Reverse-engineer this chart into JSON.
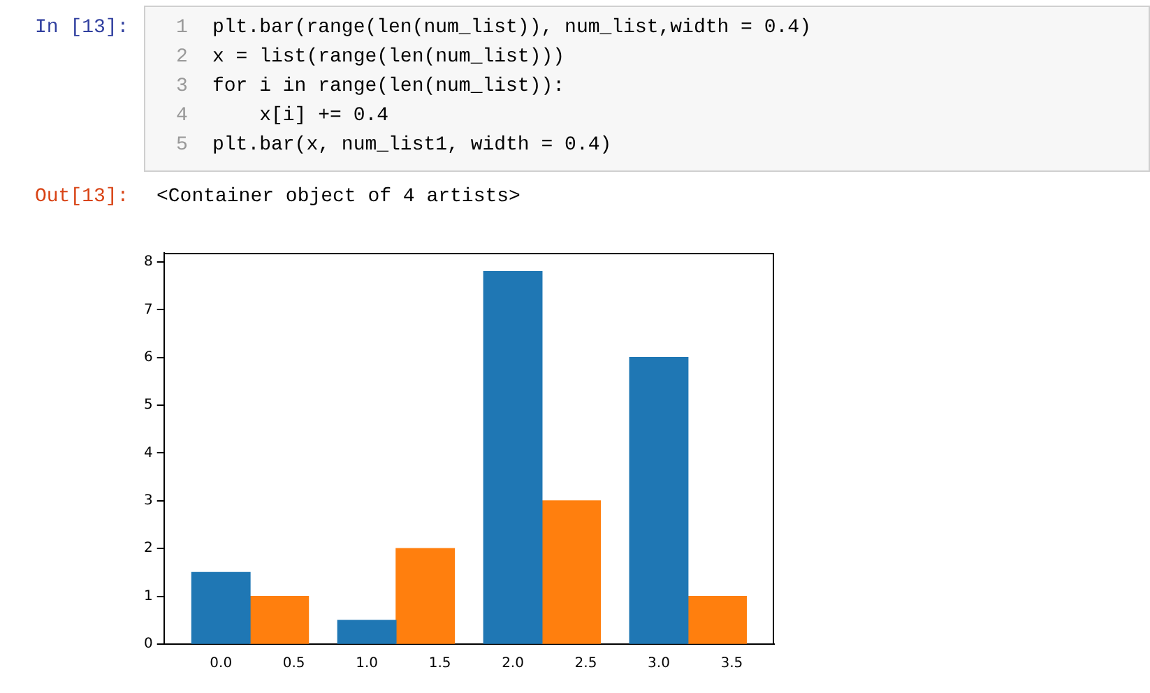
{
  "chart_data": {
    "type": "bar",
    "annotations": [
      "In [13]:",
      "1",
      "plt.bar(range(len(num_list)), num_list,width = 0.4)",
      "2",
      "x = list(range(len(num_list)))",
      "3",
      "for i in range(len(num_list)):",
      "4",
      "    x[i] += 0.4",
      "5",
      "plt.bar(x, num_list1, width = 0.4)",
      "Out[13]:",
      "<Container object of 4 artists>"
    ],
    "series": [
      {
        "color": "#1f77b4",
        "x": [
          0,
          1,
          2,
          3
        ],
        "values": [
          1.5,
          0.5,
          7.8,
          6
        ]
      },
      {
        "color": "#ff7f0e",
        "x": [
          0.4,
          1.4,
          2.4,
          3.4
        ],
        "values": [
          1,
          2,
          3,
          1
        ]
      }
    ],
    "xlim": [
      -0.39,
      3.79
    ],
    "xticks": [
      {
        "value": 0,
        "label": "0.0"
      },
      {
        "value": 0.5,
        "label": "0.5"
      },
      {
        "value": 1,
        "label": "1.0"
      },
      {
        "value": 1.5,
        "label": "1.5"
      },
      {
        "value": 2,
        "label": "2.0"
      },
      {
        "value": 2.5,
        "label": "2.5"
      },
      {
        "value": 3,
        "label": "3.0"
      },
      {
        "value": 3.5,
        "label": "3.5"
      }
    ],
    "ylim": [
      0,
      8.19
    ],
    "yticks": [
      0,
      1,
      2,
      3,
      4,
      5,
      6,
      7,
      8
    ],
    "grid": false,
    "legend": false
  }
}
